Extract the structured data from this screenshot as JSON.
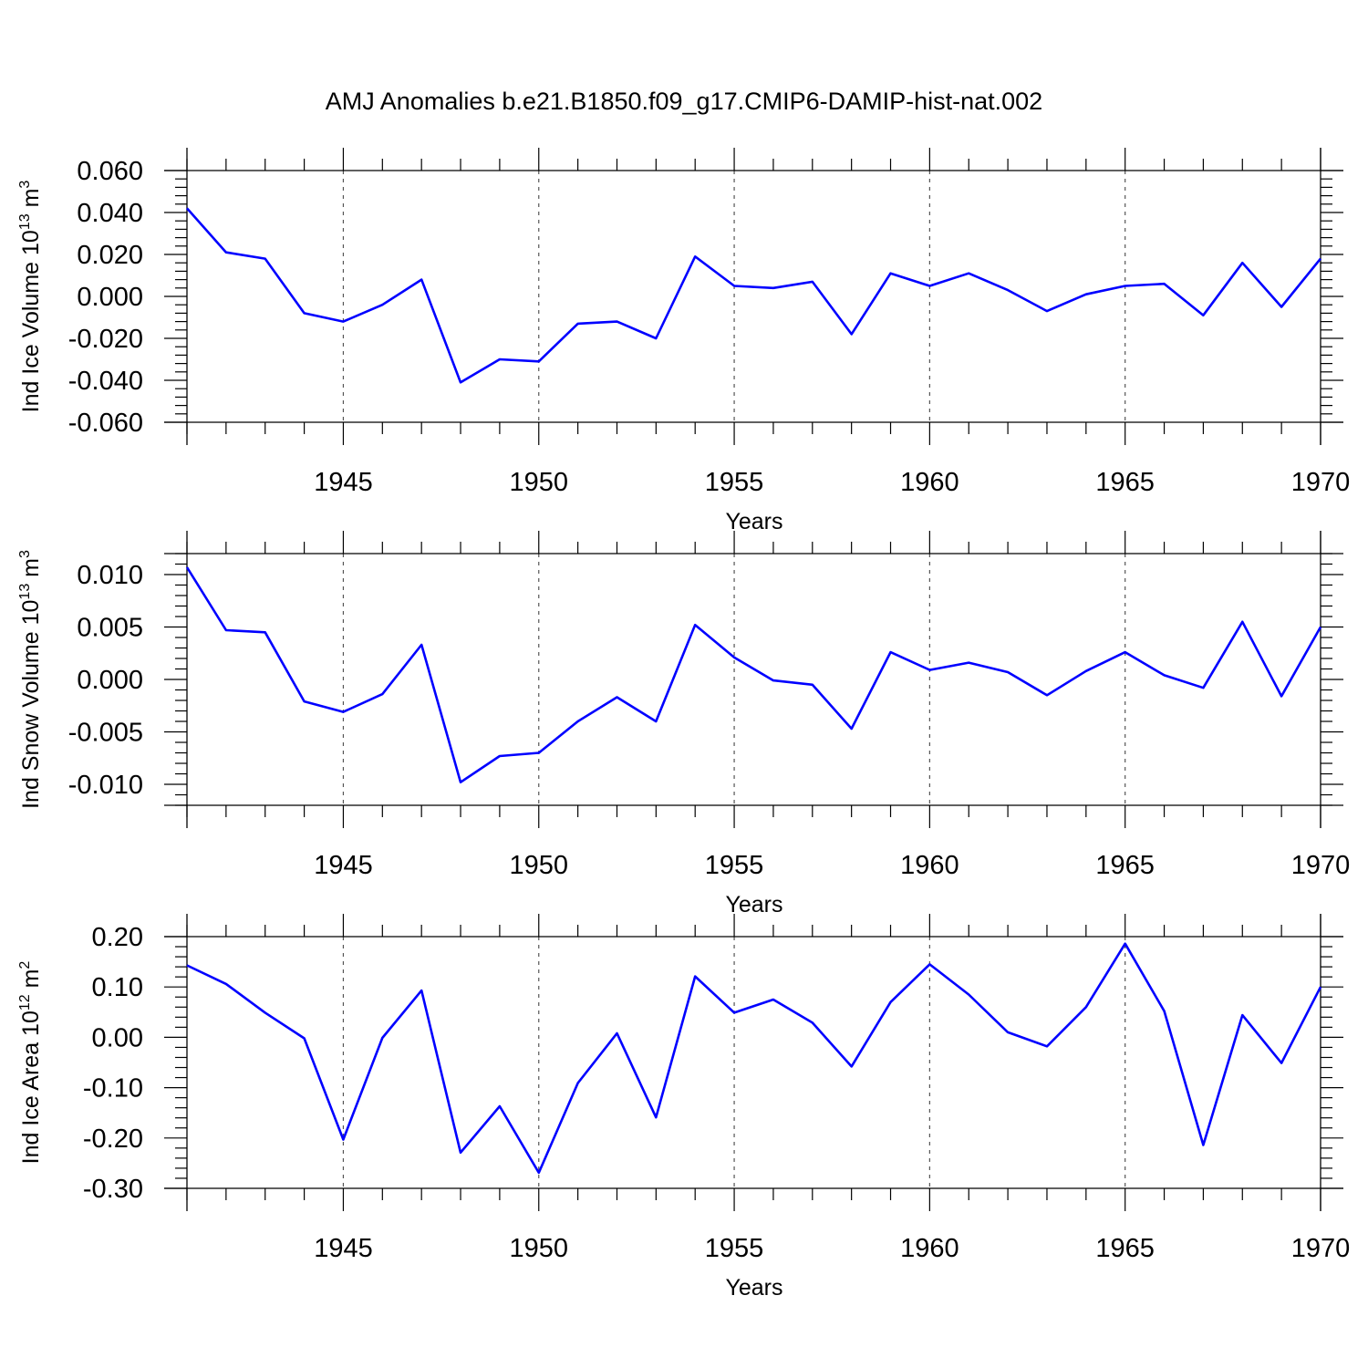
{
  "title": "AMJ Anomalies b.e21.B1850.f09_g17.CMIP6-DAMIP-hist-nat.002",
  "colors": {
    "line": "#0000ff",
    "axis": "#000000",
    "grid": "#555555"
  },
  "chart_data": [
    {
      "type": "line",
      "ylabel_main": "Ind Ice Volume 10",
      "ylabel_sup": "13",
      "ylabel_unit": " m",
      "ylabel_unit_sup": "3",
      "xlabel": "Years",
      "xlim": [
        1941,
        1970
      ],
      "ylim": [
        -0.06,
        0.06
      ],
      "xticks": [
        1945,
        1950,
        1955,
        1960,
        1965,
        1970
      ],
      "xtick_labels": [
        "1945",
        "1950",
        "1955",
        "1960",
        "1965",
        "1970"
      ],
      "yticks": [
        -0.06,
        -0.04,
        -0.02,
        0.0,
        0.02,
        0.04,
        0.06
      ],
      "ytick_labels": [
        "-0.060",
        "-0.040",
        "-0.020",
        "0.000",
        "0.020",
        "0.040",
        "0.060"
      ],
      "grid": "vertical dashed at major x ticks",
      "x": [
        1941,
        1942,
        1943,
        1944,
        1945,
        1946,
        1947,
        1948,
        1949,
        1950,
        1951,
        1952,
        1953,
        1954,
        1955,
        1956,
        1957,
        1958,
        1959,
        1960,
        1961,
        1962,
        1963,
        1964,
        1965,
        1966,
        1967,
        1968,
        1969,
        1970
      ],
      "values": [
        0.042,
        0.021,
        0.018,
        -0.008,
        -0.012,
        -0.004,
        0.008,
        -0.041,
        -0.03,
        -0.031,
        -0.013,
        -0.012,
        -0.02,
        0.019,
        0.005,
        0.004,
        0.007,
        -0.018,
        0.011,
        0.005,
        0.011,
        0.003,
        -0.007,
        0.001,
        0.005,
        0.006,
        -0.009,
        0.016,
        -0.005,
        0.018
      ]
    },
    {
      "type": "line",
      "ylabel_main": "Ind Snow Volume 10",
      "ylabel_sup": "13",
      "ylabel_unit": " m",
      "ylabel_unit_sup": "3",
      "xlabel": "Years",
      "xlim": [
        1941,
        1970
      ],
      "ylim": [
        -0.012,
        0.012
      ],
      "xticks": [
        1945,
        1950,
        1955,
        1960,
        1965,
        1970
      ],
      "xtick_labels": [
        "1945",
        "1950",
        "1955",
        "1960",
        "1965",
        "1970"
      ],
      "yticks": [
        -0.01,
        -0.005,
        0.0,
        0.005,
        0.01
      ],
      "ytick_labels": [
        "-0.010",
        "-0.005",
        "0.000",
        "0.005",
        "0.010"
      ],
      "grid": "vertical dashed at major x ticks",
      "x": [
        1941,
        1942,
        1943,
        1944,
        1945,
        1946,
        1947,
        1948,
        1949,
        1950,
        1951,
        1952,
        1953,
        1954,
        1955,
        1956,
        1957,
        1958,
        1959,
        1960,
        1961,
        1962,
        1963,
        1964,
        1965,
        1966,
        1967,
        1968,
        1969,
        1970
      ],
      "values": [
        0.0107,
        0.0047,
        0.0045,
        -0.0021,
        -0.0031,
        -0.0014,
        0.0033,
        -0.0098,
        -0.0073,
        -0.007,
        -0.004,
        -0.0017,
        -0.004,
        0.0052,
        0.0021,
        -0.0001,
        -0.0005,
        -0.0047,
        0.0026,
        0.0009,
        0.0016,
        0.0007,
        -0.0015,
        0.0008,
        0.0026,
        0.0004,
        -0.0008,
        0.0055,
        -0.0016,
        0.005
      ]
    },
    {
      "type": "line",
      "ylabel_main": "Ind Ice Area 10",
      "ylabel_sup": "12",
      "ylabel_unit": " m",
      "ylabel_unit_sup": "2",
      "xlabel": "Years",
      "xlim": [
        1941,
        1970
      ],
      "ylim": [
        -0.3,
        0.2
      ],
      "xticks": [
        1945,
        1950,
        1955,
        1960,
        1965,
        1970
      ],
      "xtick_labels": [
        "1945",
        "1950",
        "1955",
        "1960",
        "1965",
        "1970"
      ],
      "yticks": [
        -0.3,
        -0.2,
        -0.1,
        0.0,
        0.1,
        0.2
      ],
      "ytick_labels": [
        "-0.30",
        "-0.20",
        "-0.10",
        "0.00",
        "0.10",
        "0.20"
      ],
      "grid": "vertical dashed at major x ticks",
      "x": [
        1941,
        1942,
        1943,
        1944,
        1945,
        1946,
        1947,
        1948,
        1949,
        1950,
        1951,
        1952,
        1953,
        1954,
        1955,
        1956,
        1957,
        1958,
        1959,
        1960,
        1961,
        1962,
        1963,
        1964,
        1965,
        1966,
        1967,
        1968,
        1969,
        1970
      ],
      "values": [
        0.143,
        0.106,
        0.049,
        -0.002,
        -0.203,
        -0.001,
        0.093,
        -0.229,
        -0.137,
        -0.269,
        -0.091,
        0.008,
        -0.159,
        0.121,
        0.049,
        0.075,
        0.029,
        -0.058,
        0.07,
        0.145,
        0.085,
        0.01,
        -0.018,
        0.06,
        0.186,
        0.052,
        -0.214,
        0.044,
        -0.051,
        0.1
      ]
    }
  ]
}
